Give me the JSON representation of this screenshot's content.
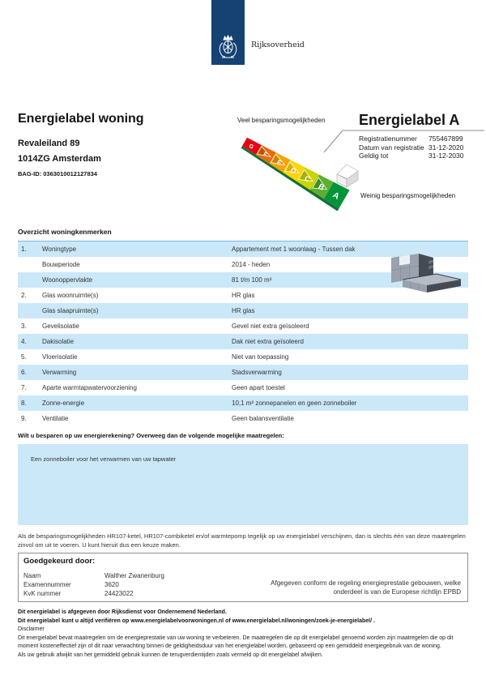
{
  "header": {
    "logo_text": "Rijksoverheid"
  },
  "title_block": {
    "title": "Energielabel woning",
    "address_line1": "Revaleiland 89",
    "address_line2": "1014ZG Amsterdam",
    "bag_id": "BAG-ID: 0363010012127834"
  },
  "label_panel": {
    "more_savings": "Veel besparingsmogelijkheden",
    "less_savings": "Weinig besparingsmogelijkheden",
    "title": "Energielabel A",
    "rating": "A",
    "scale_letters": [
      "G",
      "F",
      "E",
      "D",
      "C",
      "B",
      "A"
    ],
    "scale_colors": [
      "#e30613",
      "#eb6909",
      "#f6a500",
      "#ffd500",
      "#cdd500",
      "#5bb02c",
      "#00953b"
    ],
    "scale_colors_dark": [
      "#b00010",
      "#c35200",
      "#cc8400",
      "#d9b300",
      "#a8b000",
      "#448c1f",
      "#00722d"
    ],
    "fields": [
      {
        "label": "Registratienummer",
        "value": "755467899"
      },
      {
        "label": "Datum van registratie",
        "value": "31-12-2020"
      },
      {
        "label": "Geldig tot",
        "value": "31-12-2030"
      }
    ]
  },
  "characteristics": {
    "title": "Overzicht woningkenmerken",
    "rows": [
      {
        "num": "1.",
        "label": "Woningtype",
        "value": "Appartement met 1 woonlaag - Tussen dak"
      },
      {
        "num": "",
        "label": "Bouwperiode",
        "value": "2014 - heden"
      },
      {
        "num": "",
        "label": "Woonoppervlakte",
        "value": "81 t/m 100 m²"
      },
      {
        "num": "2.",
        "label": "Glas woonruimte(s)",
        "value": "HR glas"
      },
      {
        "num": "",
        "label": "Glas slaapruimte(s)",
        "value": "HR glas"
      },
      {
        "num": "3.",
        "label": "Gevelisolatie",
        "value": "Gevel niet extra geïsoleerd"
      },
      {
        "num": "4.",
        "label": "Dakisolatie",
        "value": "Dak niet extra geïsoleerd"
      },
      {
        "num": "5.",
        "label": "Vloerisolatie",
        "value": "Niet van toepassing"
      },
      {
        "num": "6.",
        "label": "Verwarming",
        "value": "Stadsverwarming"
      },
      {
        "num": "7.",
        "label": "Aparte warmtapwatervoorziening",
        "value": "Geen apart toestel"
      },
      {
        "num": "8.",
        "label": "Zonne-energie",
        "value": "10,1 m² zonnepanelen en geen zonneboiler"
      },
      {
        "num": "9.",
        "label": "Ventilatie",
        "value": "Geen balansventilatie"
      }
    ]
  },
  "measures": {
    "title": "Wilt u besparen op uw energierekening? Overweeg dan de volgende mogelijke maatregelen:",
    "items": [
      "Een zonneboiler voor het verwarmen van uw tapwater"
    ],
    "note": "Als de besparingsmogelijkheden HR107-ketel, HR107-combiketel en/of warmtepomp tegelijk op uw energielabel verschijnen, dan is slechts één van deze maatregelen zinvol om uit te voeren. U kunt hieruit dus een keuze maken."
  },
  "approval": {
    "title": "Goedgekeurd door:",
    "fields": [
      {
        "label": "Naam",
        "value": "Walther Zwanenburg"
      },
      {
        "label": "Examennummer",
        "value": "3620"
      },
      {
        "label": "KvK nummer",
        "value": "24423022"
      }
    ],
    "conformity": "Afgegeven conform de regeling energieprestatie gebouwen, welke onderdeel is van de Europese richtlijn EPBD"
  },
  "footer": {
    "issued": "Dit energielabel is afgegeven door Rijksdienst voor Ondernemend Nederland.",
    "verify": "Dit energielabel kunt u altijd verifiëren op www.energielabelvoorwoningen.nl of www.energielabel.nl/woningen/zoek-je-energielabel/ .",
    "disclaimer_title": "Disclaimer",
    "disclaimer_p1": "Dit energielabel bevat maatregelen om de energieprestatie van uw woning te verbeteren. De maatregelen die op dit energielabel genoemd worden zijn maatregelen die op dit moment kosteneffectief zijn of dit naar verwachting binnen de geldigheidsduur van het energielabel worden, gebaseerd op een gemiddeld energiegebruik van de woning.",
    "disclaimer_p2": "Als uw gebruik afwijkt van het gemiddeld gebruik kunnen de terugverdientijden zoals vermeld op dit energielabel afwijken."
  },
  "colors": {
    "brand_blue": "#154273",
    "row_blue": "#cbe8f9",
    "text": "#222222"
  }
}
